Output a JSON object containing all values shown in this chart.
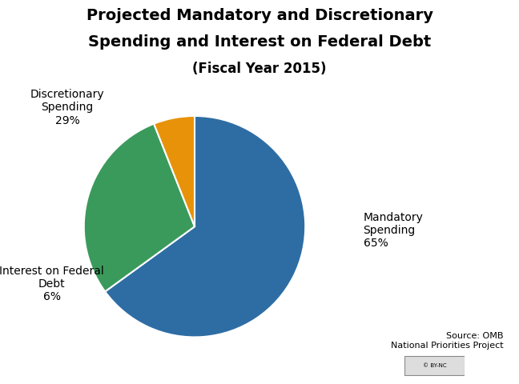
{
  "title_line1": "Projected Mandatory and Discretionary",
  "title_line2": "Spending and Interest on Federal Debt",
  "title_line3": "(Fiscal Year 2015)",
  "slices": [
    65,
    29,
    6
  ],
  "colors": [
    "#2e6da4",
    "#3a9a5c",
    "#e8920a"
  ],
  "startangle": 90,
  "source_text": "Source: OMB\nNational Priorities Project",
  "background_color": "#ffffff",
  "label_mandatory": "Mandatory\nSpending\n65%",
  "label_discretionary": "Discretionary\nSpending\n29%",
  "label_interest": "Interest on Federal\nDebt\n6%",
  "title_fontsize": 14,
  "subtitle_fontsize": 12,
  "label_fontsize": 10,
  "source_fontsize": 8
}
